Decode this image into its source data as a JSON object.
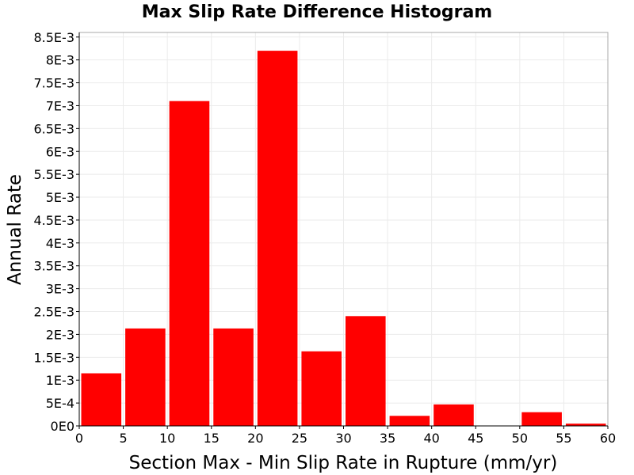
{
  "chart_data": {
    "type": "bar",
    "title": "Max Slip Rate Difference Histogram",
    "xlabel": "Section Max - Min Slip Rate in Rupture (mm/yr)",
    "ylabel": "Annual Rate",
    "xlim": [
      0,
      60
    ],
    "ylim": [
      0,
      0.0086
    ],
    "bin_width": 5,
    "x_ticks": [
      {
        "value": 0,
        "label": "0"
      },
      {
        "value": 5,
        "label": "5"
      },
      {
        "value": 10,
        "label": "10"
      },
      {
        "value": 15,
        "label": "15"
      },
      {
        "value": 20,
        "label": "20"
      },
      {
        "value": 25,
        "label": "25"
      },
      {
        "value": 30,
        "label": "30"
      },
      {
        "value": 35,
        "label": "35"
      },
      {
        "value": 40,
        "label": "40"
      },
      {
        "value": 45,
        "label": "45"
      },
      {
        "value": 50,
        "label": "50"
      },
      {
        "value": 55,
        "label": "55"
      },
      {
        "value": 60,
        "label": "60"
      }
    ],
    "y_ticks": [
      {
        "value": 0,
        "label": "0E0"
      },
      {
        "value": 0.0005,
        "label": "5E-4"
      },
      {
        "value": 0.001,
        "label": "1E-3"
      },
      {
        "value": 0.0015,
        "label": "1.5E-3"
      },
      {
        "value": 0.002,
        "label": "2E-3"
      },
      {
        "value": 0.0025,
        "label": "2.5E-3"
      },
      {
        "value": 0.003,
        "label": "3E-3"
      },
      {
        "value": 0.0035,
        "label": "3.5E-3"
      },
      {
        "value": 0.004,
        "label": "4E-3"
      },
      {
        "value": 0.0045,
        "label": "4.5E-3"
      },
      {
        "value": 0.005,
        "label": "5E-3"
      },
      {
        "value": 0.0055,
        "label": "5.5E-3"
      },
      {
        "value": 0.006,
        "label": "6E-3"
      },
      {
        "value": 0.0065,
        "label": "6.5E-3"
      },
      {
        "value": 0.007,
        "label": "7E-3"
      },
      {
        "value": 0.0075,
        "label": "7.5E-3"
      },
      {
        "value": 0.008,
        "label": "8E-3"
      },
      {
        "value": 0.0085,
        "label": "8.5E-3"
      }
    ],
    "bins": [
      {
        "x": 2.5,
        "value": 0.00115
      },
      {
        "x": 7.5,
        "value": 0.00213
      },
      {
        "x": 12.5,
        "value": 0.0071
      },
      {
        "x": 17.5,
        "value": 0.00213
      },
      {
        "x": 22.5,
        "value": 0.0082
      },
      {
        "x": 27.5,
        "value": 0.00163
      },
      {
        "x": 32.5,
        "value": 0.0024
      },
      {
        "x": 37.5,
        "value": 0.00022
      },
      {
        "x": 42.5,
        "value": 0.00047
      },
      {
        "x": 47.5,
        "value": 0
      },
      {
        "x": 52.5,
        "value": 0.0003
      },
      {
        "x": 57.5,
        "value": 5e-05
      }
    ],
    "grid": true,
    "colors": {
      "bar": "#ff0000",
      "grid": "#ebebeb",
      "frame": "#a8a8a8",
      "axis": "#000000"
    }
  }
}
